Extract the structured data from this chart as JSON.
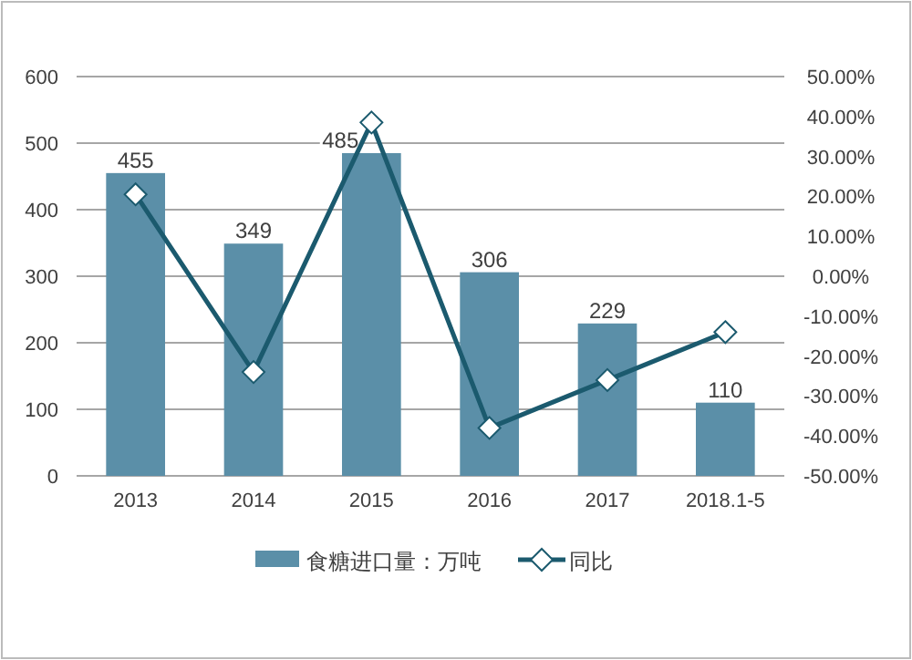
{
  "chart_data": {
    "type": "bar",
    "categories": [
      "2013",
      "2014",
      "2015",
      "2016",
      "2017",
      "2018.1-5"
    ],
    "series": [
      {
        "name": "食糖进口量：万吨",
        "color": "#5b8fa8",
        "values": [
          455,
          349,
          485,
          306,
          229,
          110
        ],
        "value_labels": [
          "455",
          "349",
          "485",
          "306",
          "229",
          "110"
        ]
      },
      {
        "name": "同比",
        "type": "line",
        "axis": "y2",
        "color": "#1b5a6e",
        "marker": "diamond",
        "values": [
          20.5,
          -24,
          38.5,
          -38,
          -26,
          -14
        ]
      }
    ],
    "ylim": [
      0,
      600
    ],
    "yticks": [
      0,
      100,
      200,
      300,
      400,
      500,
      600
    ],
    "y2lim": [
      -50,
      50
    ],
    "y2ticks": [
      {
        "value": -50,
        "label": "-50.00%"
      },
      {
        "value": -40,
        "label": "-40.00%"
      },
      {
        "value": -30,
        "label": "-30.00%"
      },
      {
        "value": -20,
        "label": "-20.00%"
      },
      {
        "value": -10,
        "label": "-10.00%"
      },
      {
        "value": 0,
        "label": "0.00%"
      },
      {
        "value": 10,
        "label": "10.00%"
      },
      {
        "value": 20,
        "label": "20.00%"
      },
      {
        "value": 30,
        "label": "30.00%"
      },
      {
        "value": 40,
        "label": "40.00%"
      },
      {
        "value": 50,
        "label": "50.00%"
      }
    ],
    "grid": "y",
    "legend": "bottom"
  }
}
